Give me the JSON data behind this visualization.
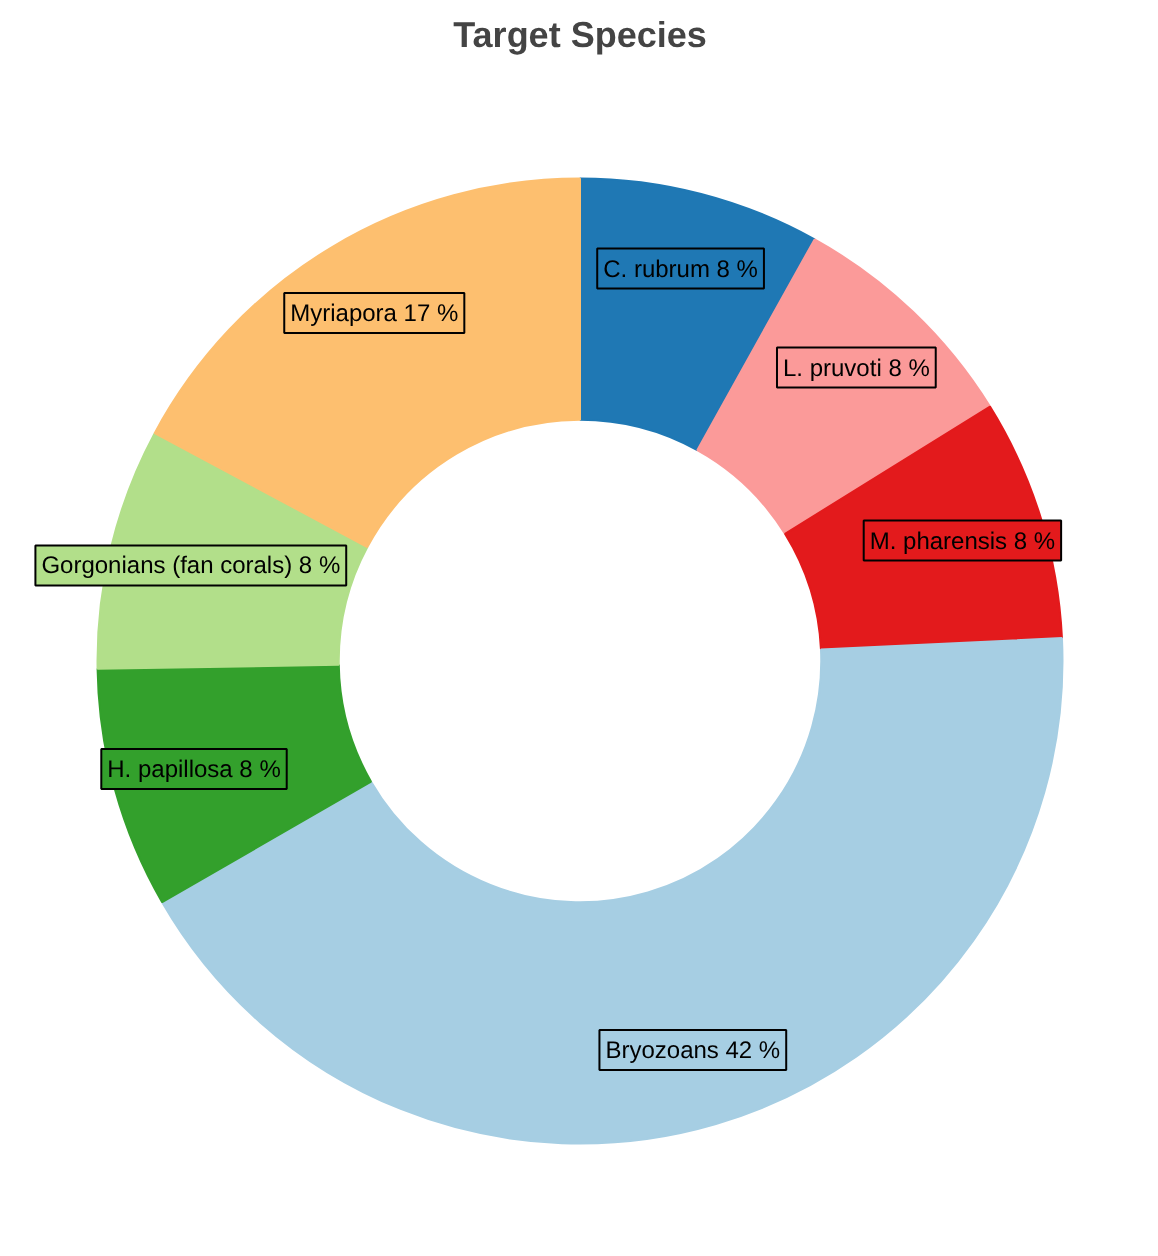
{
  "chart_data": {
    "type": "donut",
    "title": "Target Species",
    "categories": [
      "C. rubrum",
      "L. pruvoti",
      "M. pharensis",
      "Bryozoans",
      "H. papillosa",
      "Gorgonians (fan corals)",
      "Myriapora"
    ],
    "values": [
      8,
      8,
      8,
      42,
      8,
      8,
      17
    ],
    "colors": [
      "#1f78b4",
      "#fb9a99",
      "#e31a1c",
      "#a6cee3",
      "#33a02c",
      "#b2df8a",
      "#fdbf6f"
    ],
    "value_labels": [
      "8 %",
      "8 %",
      "8 %",
      "42 %",
      "8 %",
      "8 %",
      "17 %"
    ]
  }
}
